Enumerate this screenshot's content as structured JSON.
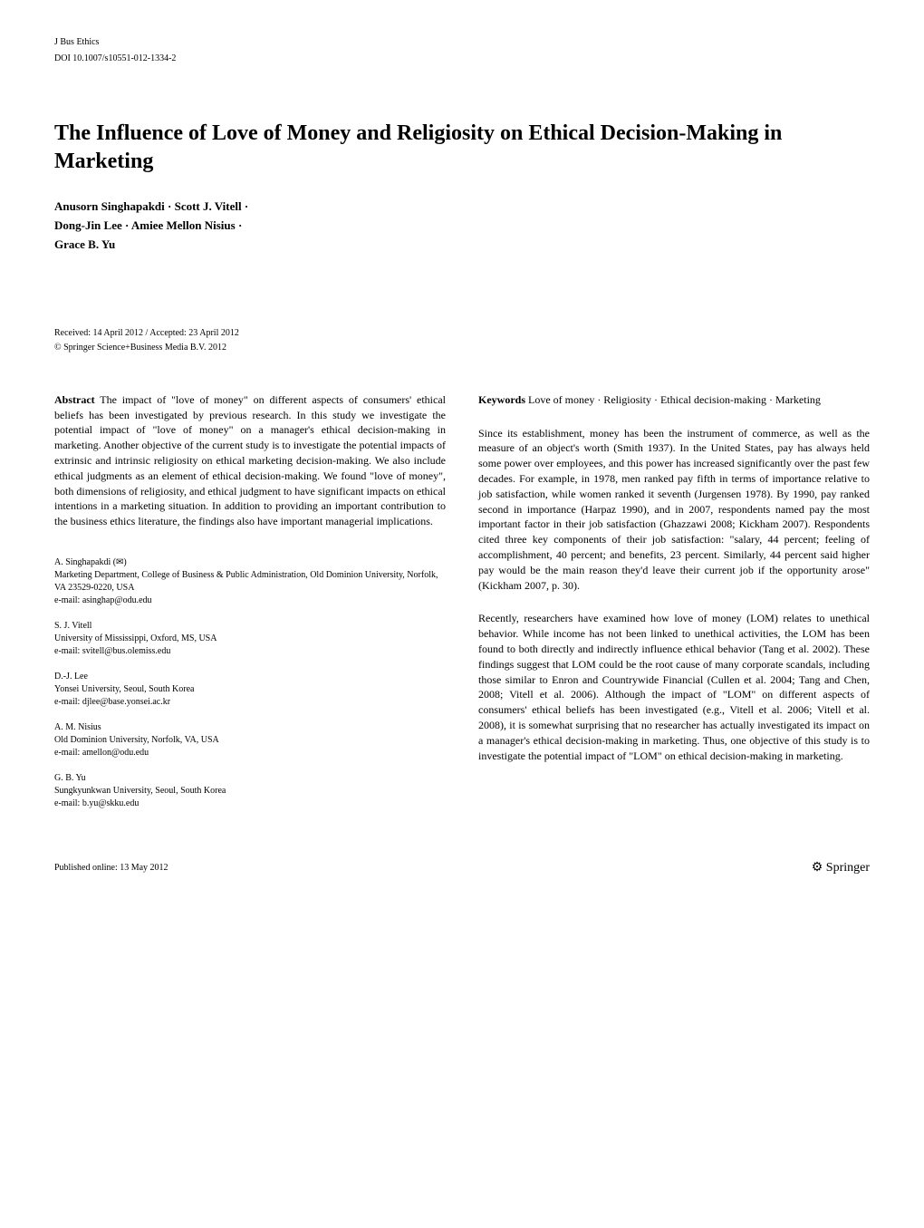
{
  "header": {
    "journal": "J Bus Ethics",
    "doi": "DOI 10.1007/s10551-012-1334-2"
  },
  "title": "The Influence of Love of Money and Religiosity on Ethical Decision-Making in Marketing",
  "authors_line1": "Anusorn Singhapakdi · Scott J. Vitell ·",
  "authors_line2": "Dong-Jin Lee · Amiee Mellon Nisius ·",
  "authors_line3": "Grace B. Yu",
  "dates": "Received: 14 April 2012 / Accepted: 23 April 2012",
  "copyright": "© Springer Science+Business Media B.V. 2012",
  "abstract": {
    "label": "Abstract",
    "text": "The impact of \"love of money\" on different aspects of consumers' ethical beliefs has been investigated by previous research. In this study we investigate the potential impact of \"love of money\" on a manager's ethical decision-making in marketing. Another objective of the current study is to investigate the potential impacts of extrinsic and intrinsic religiosity on ethical marketing decision-making. We also include ethical judgments as an element of ethical decision-making. We found \"love of money\", both dimensions of religiosity, and ethical judgment to have significant impacts on ethical intentions in a marketing situation. In addition to providing an important contribution to the business ethics literature, the findings also have important managerial implications."
  },
  "keywords": {
    "label": "Keywords",
    "text": "Love of money · Religiosity · Ethical decision-making · Marketing"
  },
  "body_p1": "Since its establishment, money has been the instrument of commerce, as well as the measure of an object's worth (Smith 1937). In the United States, pay has always held some power over employees, and this power has increased significantly over the past few decades. For example, in 1978, men ranked pay fifth in terms of importance relative to job satisfaction, while women ranked it seventh (Jurgensen 1978). By 1990, pay ranked second in importance (Harpaz 1990), and in 2007, respondents named pay the most important factor in their job satisfaction (Ghazzawi 2008; Kickham 2007). Respondents cited three key components of their job satisfaction: \"salary, 44 percent; feeling of accomplishment, 40 percent; and benefits, 23 percent. Similarly, 44 percent said higher pay would be the main reason they'd leave their current job if the opportunity arose\" (Kickham 2007, p. 30).",
  "body_p2": "Recently, researchers have examined how love of money (LOM) relates to unethical behavior. While income has not been linked to unethical activities, the LOM has been found to both directly and indirectly influence ethical behavior (Tang et al. 2002). These findings suggest that LOM could be the root cause of many corporate scandals, including those similar to Enron and Countrywide Financial (Cullen et al. 2004; Tang and Chen, 2008; Vitell et al. 2006). Although the impact of \"LOM\" on different aspects of consumers' ethical beliefs has been investigated (e.g., Vitell et al. 2006; Vitell et al. 2008), it is somewhat surprising that no researcher has actually investigated its impact on a manager's ethical decision-making in marketing. Thus, one objective of this study is to investigate the potential impact of \"LOM\" on ethical decision-making in marketing.",
  "affiliations": {
    "a1": {
      "name": "A. Singhapakdi (✉)",
      "dept": "Marketing Department, College of Business & Public Administration, Old Dominion University, Norfolk, VA 23529-0220, USA",
      "email": "e-mail: asinghap@odu.edu"
    },
    "a2": {
      "name": "S. J. Vitell",
      "dept": "University of Mississippi, Oxford, MS, USA",
      "email": "e-mail: svitell@bus.olemiss.edu"
    },
    "a3": {
      "name": "D.-J. Lee",
      "dept": "Yonsei University, Seoul, South Korea",
      "email": "e-mail: djlee@base.yonsei.ac.kr"
    },
    "a4": {
      "name": "A. M. Nisius",
      "dept": "Old Dominion University, Norfolk, VA, USA",
      "email": "e-mail: amellon@odu.edu"
    },
    "a5": {
      "name": "G. B. Yu",
      "dept": "Sungkyunkwan University, Seoul, South Korea",
      "email": "e-mail: b.yu@skku.edu"
    }
  },
  "footer": {
    "published": "Published online: 13 May 2012",
    "publisher": "Springer"
  }
}
